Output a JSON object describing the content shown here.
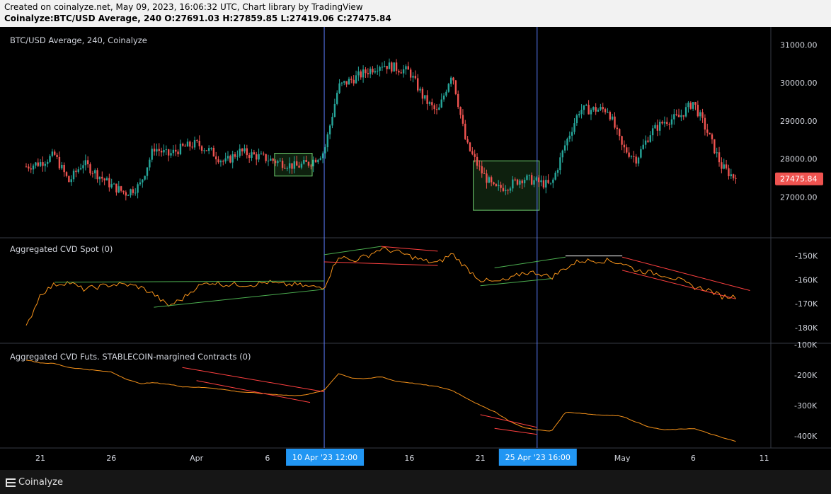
{
  "header": {
    "created_line": "Created on coinalyze.net, May 09, 2023, 16:06:32 UTC, Chart library by TradingView",
    "ohlc_line": "Coinalyze:BTC/USD Average, 240 O:27691.03 H:27859.85 L:27419.06 C:27475.84"
  },
  "footer": {
    "brand": "Coinalyze",
    "icon": "coinalyze-logo-icon"
  },
  "colors": {
    "up": "#26a69a",
    "down": "#ef5350",
    "cvd_line": "#f7931a",
    "trend_red": "#ff4040",
    "trend_green": "#4caf50",
    "marker": "#5b7cfa",
    "price_label_bg": "#ef5350",
    "time_label_bg": "#2196f3"
  },
  "chart_data": [
    {
      "type": "candlestick",
      "title": "BTC/USD Average, 240, Coinalyze",
      "ylim": [
        26000,
        31400
      ],
      "yticks": [
        27000,
        28000,
        29000,
        30000,
        31000
      ],
      "ytick_labels": [
        "27000.00",
        "28000.00",
        "29000.00",
        "30000.00",
        "31000.00"
      ],
      "last_price": "27475.84",
      "anchor_dates": [
        "Mar 20",
        "Mar 21",
        "Mar 22",
        "Mar 23",
        "Mar 24",
        "Mar 25",
        "Mar 26",
        "Mar 27",
        "Mar 28",
        "Mar 29",
        "Mar 30",
        "Mar 31",
        "Apr 1",
        "Apr 2",
        "Apr 3",
        "Apr 4",
        "Apr 5",
        "Apr 6",
        "Apr 7",
        "Apr 8",
        "Apr 9",
        "Apr 10",
        "Apr 11",
        "Apr 12",
        "Apr 13",
        "Apr 14",
        "Apr 15",
        "Apr 16",
        "Apr 17",
        "Apr 18",
        "Apr 19",
        "Apr 20",
        "Apr 21",
        "Apr 22",
        "Apr 23",
        "Apr 24",
        "Apr 25",
        "Apr 26",
        "Apr 27",
        "Apr 28",
        "Apr 29",
        "Apr 30",
        "May 1",
        "May 2",
        "May 3",
        "May 4",
        "May 5",
        "May 6",
        "May 7",
        "May 8",
        "May 9"
      ],
      "anchor_close": [
        27800,
        27900,
        28100,
        27400,
        27900,
        27600,
        27300,
        27100,
        27300,
        28300,
        28100,
        28300,
        28400,
        28200,
        27900,
        28200,
        28100,
        28000,
        27900,
        27800,
        27900,
        28200,
        29900,
        30100,
        30300,
        30500,
        30400,
        30300,
        29600,
        29200,
        30300,
        28400,
        27700,
        27200,
        27300,
        27500,
        27400,
        27300,
        28400,
        29300,
        29300,
        29300,
        28300,
        28000,
        28700,
        29000,
        29100,
        29500,
        28700,
        27800,
        27475
      ],
      "zones": [
        {
          "from": "Apr 7",
          "to": "Apr 9",
          "ymin": 27550,
          "ymax": 28150
        },
        {
          "from": "Apr 21",
          "to": "Apr 25",
          "ymin": 26650,
          "ymax": 27950
        }
      ]
    },
    {
      "type": "line",
      "title": "Aggregated CVD Spot (0)",
      "ylim": [
        -186000,
        -143000
      ],
      "ytick_labels": [
        "-150K",
        "-160K",
        "-170K",
        "-180K"
      ],
      "yticks": [
        -150000,
        -160000,
        -170000,
        -180000
      ],
      "anchor_values": [
        -180000,
        -166000,
        -162000,
        -161000,
        -164000,
        -163000,
        -162000,
        -162000,
        -163000,
        -166000,
        -171000,
        -168000,
        -163000,
        -161000,
        -162000,
        -162000,
        -162000,
        -161000,
        -162000,
        -162000,
        -163000,
        -163000,
        -150000,
        -152000,
        -150000,
        -147000,
        -148000,
        -150000,
        -152000,
        -153000,
        -149000,
        -155000,
        -160000,
        -161000,
        -160000,
        -157000,
        -157000,
        -159000,
        -155000,
        -152000,
        -152000,
        -152000,
        -153000,
        -156000,
        -157000,
        -158000,
        -160000,
        -163000,
        -164000,
        -167000,
        -167000
      ]
    },
    {
      "type": "line",
      "title": "Aggregated CVD Futs. STABLECOIN-margined Contracts (0)",
      "ylim": [
        -435000,
        -100000
      ],
      "ytick_labels": [
        "-100K",
        "-200K",
        "-300K",
        "-400K"
      ],
      "yticks": [
        -100000,
        -200000,
        -300000,
        -400000
      ],
      "anchor_values": [
        -150000,
        -160000,
        -162000,
        -175000,
        -180000,
        -185000,
        -190000,
        -212000,
        -228000,
        -225000,
        -230000,
        -238000,
        -240000,
        -242000,
        -248000,
        -255000,
        -258000,
        -262000,
        -265000,
        -268000,
        -262000,
        -250000,
        -195000,
        -210000,
        -212000,
        -205000,
        -220000,
        -225000,
        -232000,
        -238000,
        -250000,
        -275000,
        -300000,
        -320000,
        -350000,
        -372000,
        -380000,
        -385000,
        -322000,
        -325000,
        -330000,
        -332000,
        -335000,
        -355000,
        -372000,
        -380000,
        -378000,
        -375000,
        -390000,
        -405000,
        -418000
      ]
    }
  ],
  "x_axis": {
    "ticks": [
      {
        "label": "21",
        "date": "Mar 21"
      },
      {
        "label": "26",
        "date": "Mar 26"
      },
      {
        "label": "Apr",
        "date": "Apr 1"
      },
      {
        "label": "6",
        "date": "Apr 6"
      },
      {
        "label": "16",
        "date": "Apr 16"
      },
      {
        "label": "21",
        "date": "Apr 21"
      },
      {
        "label": "May",
        "date": "May 1"
      },
      {
        "label": "6",
        "date": "May 6"
      },
      {
        "label": "11",
        "date": "May 11"
      }
    ],
    "markers": [
      {
        "label": "10 Apr '23   12:00",
        "date": "Apr 10"
      },
      {
        "label": "25 Apr '23   16:00",
        "date": "Apr 25"
      }
    ]
  }
}
